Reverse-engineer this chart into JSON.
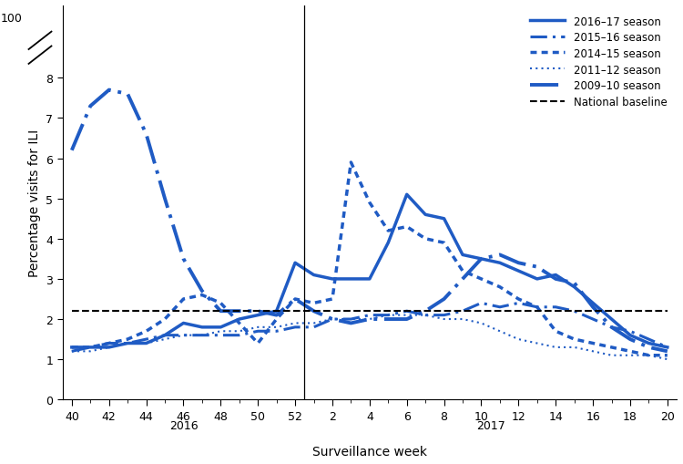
{
  "blue_color": "#1f5bc4",
  "black_color": "#000000",
  "national_baseline": 2.2,
  "xlabel": "Surveillance week",
  "ylabel": "Percentage visits for ILI",
  "background_color": "#ffffff",
  "season_2016_17": {
    "weeks": [
      40,
      41,
      42,
      43,
      44,
      45,
      46,
      47,
      48,
      49,
      50,
      51,
      52,
      1,
      2,
      3,
      4,
      5,
      6,
      7,
      8,
      9,
      10,
      11,
      12,
      13,
      14,
      15,
      16,
      17,
      18,
      19,
      20
    ],
    "values": [
      1.3,
      1.3,
      1.3,
      1.4,
      1.4,
      1.6,
      1.9,
      1.8,
      1.8,
      2.0,
      2.1,
      2.2,
      3.4,
      3.1,
      3.0,
      3.0,
      3.0,
      3.9,
      5.1,
      4.6,
      4.5,
      3.6,
      3.5,
      3.4,
      3.2,
      3.0,
      3.1,
      2.8,
      2.4,
      2.0,
      1.6,
      1.4,
      1.3
    ],
    "label": "2016–17 season"
  },
  "season_2015_16": {
    "weeks": [
      40,
      41,
      42,
      43,
      44,
      45,
      46,
      47,
      48,
      49,
      50,
      51,
      52,
      1,
      2,
      3,
      4,
      5,
      6,
      7,
      8,
      9,
      10,
      11,
      12,
      13,
      14,
      15,
      16,
      17,
      18,
      19,
      20
    ],
    "values": [
      1.2,
      1.3,
      1.4,
      1.4,
      1.5,
      1.6,
      1.6,
      1.6,
      1.6,
      1.6,
      1.7,
      1.7,
      1.8,
      1.8,
      2.0,
      2.0,
      2.1,
      2.1,
      2.2,
      2.1,
      2.1,
      2.2,
      2.4,
      2.3,
      2.4,
      2.3,
      2.3,
      2.2,
      2.0,
      1.8,
      1.7,
      1.5,
      1.3
    ],
    "label": "2015–16 season"
  },
  "season_2014_15": {
    "weeks": [
      40,
      41,
      42,
      43,
      44,
      45,
      46,
      47,
      48,
      49,
      50,
      51,
      52,
      1,
      2,
      3,
      4,
      5,
      6,
      7,
      8,
      9,
      10,
      11,
      12,
      13,
      14,
      15,
      16,
      17,
      18,
      19,
      20
    ],
    "values": [
      1.3,
      1.3,
      1.4,
      1.5,
      1.7,
      2.0,
      2.5,
      2.6,
      2.4,
      1.9,
      1.4,
      2.0,
      2.5,
      2.4,
      2.5,
      5.9,
      4.9,
      4.2,
      4.3,
      4.0,
      3.9,
      3.2,
      3.0,
      2.8,
      2.5,
      2.3,
      1.7,
      1.5,
      1.4,
      1.3,
      1.2,
      1.1,
      1.1
    ],
    "label": "2014–15 season"
  },
  "season_2011_12": {
    "weeks": [
      40,
      41,
      42,
      43,
      44,
      45,
      46,
      47,
      48,
      49,
      50,
      51,
      52,
      1,
      2,
      3,
      4,
      5,
      6,
      7,
      8,
      9,
      10,
      11,
      12,
      13,
      14,
      15,
      16,
      17,
      18,
      19,
      20
    ],
    "values": [
      1.2,
      1.2,
      1.3,
      1.4,
      1.4,
      1.5,
      1.6,
      1.6,
      1.7,
      1.7,
      1.8,
      1.8,
      1.9,
      1.9,
      2.0,
      2.0,
      2.0,
      2.1,
      2.1,
      2.1,
      2.0,
      2.0,
      1.9,
      1.7,
      1.5,
      1.4,
      1.3,
      1.3,
      1.2,
      1.1,
      1.1,
      1.1,
      1.0
    ],
    "label": "2011–12 season"
  },
  "season_2009_10": {
    "weeks": [
      40,
      41,
      42,
      43,
      44,
      45,
      46,
      47,
      48,
      49,
      50,
      51,
      52,
      1,
      2,
      3,
      4,
      5,
      6,
      7,
      8,
      9,
      10,
      11,
      12,
      13,
      14,
      15,
      16,
      17,
      18,
      19,
      20
    ],
    "values": [
      6.2,
      7.3,
      7.7,
      7.6,
      6.6,
      5.0,
      3.5,
      2.7,
      2.2,
      2.2,
      2.2,
      2.1,
      2.5,
      2.2,
      2.0,
      1.9,
      2.0,
      2.0,
      2.0,
      2.2,
      2.5,
      3.0,
      3.5,
      3.6,
      3.4,
      3.3,
      3.0,
      2.9,
      2.3,
      1.8,
      1.5,
      1.3,
      1.2
    ],
    "label": "2009–10 season"
  }
}
